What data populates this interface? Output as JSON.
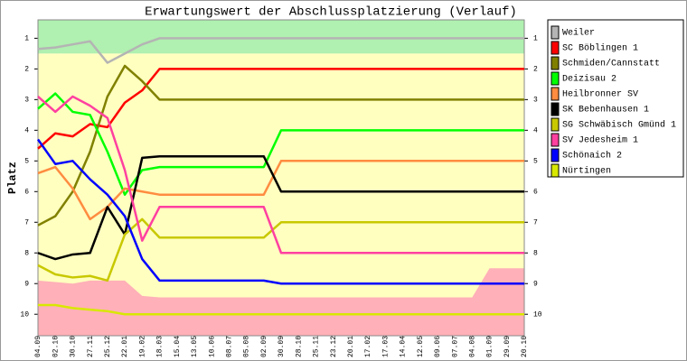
{
  "chart_data": {
    "type": "line",
    "title": "Erwartungswert der Abschlussplatzierung (Verlauf)",
    "y_label": "Platz",
    "categories": [
      "04.09",
      "02.10",
      "30.10",
      "27.11",
      "25.12",
      "22.01",
      "19.02",
      "18.03",
      "15.04",
      "13.05",
      "10.06",
      "08.07",
      "05.08",
      "02.09",
      "30.09",
      "28.10",
      "25.11",
      "23.12",
      "20.01",
      "17.02",
      "17.03",
      "14.04",
      "12.05",
      "09.06",
      "07.07",
      "04.08",
      "01.09",
      "29.09",
      "20.10"
    ],
    "ylim": [
      0.4,
      10.7
    ],
    "y_inverted": true,
    "yticks": [
      1,
      2,
      3,
      4,
      5,
      6,
      7,
      8,
      9,
      10
    ],
    "bands": [
      {
        "from": 0.4,
        "to": 1.5,
        "color": "#b0f0b0"
      },
      {
        "from": 1.5,
        "to": 10.7,
        "color": "#ffffc0"
      }
    ],
    "area": {
      "color": "#ffb0b8",
      "values": [
        8.9,
        8.95,
        9.0,
        8.9,
        8.9,
        8.9,
        9.4,
        9.45,
        9.45,
        9.45,
        9.45,
        9.45,
        9.45,
        9.45,
        9.45,
        9.45,
        9.45,
        9.45,
        9.45,
        9.45,
        9.45,
        9.45,
        9.45,
        9.45,
        9.45,
        9.45,
        8.5,
        8.5,
        8.5
      ]
    },
    "legend": "right",
    "series": [
      {
        "name": "Weiler",
        "color": "#b4b4b4",
        "values": [
          1.35,
          1.3,
          1.2,
          1.1,
          1.8,
          1.5,
          1.2,
          1.0,
          1.0,
          1.0,
          1.0,
          1.0,
          1.0,
          1.0,
          1.0,
          1.0,
          1.0,
          1.0,
          1.0,
          1.0,
          1.0,
          1.0,
          1.0,
          1.0,
          1.0,
          1.0,
          1.0,
          1.0,
          1.0
        ]
      },
      {
        "name": "SC Böblingen 1",
        "color": "#ff0000",
        "values": [
          4.6,
          4.1,
          4.2,
          3.8,
          3.9,
          3.1,
          2.7,
          2.0,
          2.0,
          2.0,
          2.0,
          2.0,
          2.0,
          2.0,
          2.0,
          2.0,
          2.0,
          2.0,
          2.0,
          2.0,
          2.0,
          2.0,
          2.0,
          2.0,
          2.0,
          2.0,
          2.0,
          2.0,
          2.0
        ]
      },
      {
        "name": "Schmiden/Cannstatt",
        "color": "#808000",
        "values": [
          7.1,
          6.8,
          6.0,
          4.7,
          2.9,
          1.9,
          2.4,
          3.0,
          3.0,
          3.0,
          3.0,
          3.0,
          3.0,
          3.0,
          3.0,
          3.0,
          3.0,
          3.0,
          3.0,
          3.0,
          3.0,
          3.0,
          3.0,
          3.0,
          3.0,
          3.0,
          3.0,
          3.0,
          3.0
        ]
      },
      {
        "name": "Deizisau 2",
        "color": "#00ff00",
        "values": [
          3.3,
          2.8,
          3.4,
          3.5,
          4.7,
          6.1,
          5.3,
          5.2,
          5.2,
          5.2,
          5.2,
          5.2,
          5.2,
          5.2,
          4.0,
          4.0,
          4.0,
          4.0,
          4.0,
          4.0,
          4.0,
          4.0,
          4.0,
          4.0,
          4.0,
          4.0,
          4.0,
          4.0,
          4.0
        ]
      },
      {
        "name": "Heilbronner SV",
        "color": "#ff8c40",
        "values": [
          5.4,
          5.2,
          5.9,
          6.9,
          6.5,
          5.9,
          6.0,
          6.1,
          6.1,
          6.1,
          6.1,
          6.1,
          6.1,
          6.1,
          5.0,
          5.0,
          5.0,
          5.0,
          5.0,
          5.0,
          5.0,
          5.0,
          5.0,
          5.0,
          5.0,
          5.0,
          5.0,
          5.0,
          5.0
        ]
      },
      {
        "name": "SK Bebenhausen 1",
        "color": "#000000",
        "values": [
          8.0,
          8.2,
          8.05,
          8.0,
          6.5,
          7.4,
          4.9,
          4.85,
          4.85,
          4.85,
          4.85,
          4.85,
          4.85,
          4.85,
          6.0,
          6.0,
          6.0,
          6.0,
          6.0,
          6.0,
          6.0,
          6.0,
          6.0,
          6.0,
          6.0,
          6.0,
          6.0,
          6.0,
          6.0
        ]
      },
      {
        "name": "SG Schwäbisch Gmünd 1",
        "color": "#c8c800",
        "values": [
          8.4,
          8.7,
          8.8,
          8.75,
          8.9,
          7.4,
          6.9,
          7.5,
          7.5,
          7.5,
          7.5,
          7.5,
          7.5,
          7.5,
          7.0,
          7.0,
          7.0,
          7.0,
          7.0,
          7.0,
          7.0,
          7.0,
          7.0,
          7.0,
          7.0,
          7.0,
          7.0,
          7.0,
          7.0
        ]
      },
      {
        "name": "SV Jedesheim 1",
        "color": "#ff40a0",
        "values": [
          2.9,
          3.4,
          2.9,
          3.2,
          3.6,
          5.3,
          7.6,
          6.5,
          6.5,
          6.5,
          6.5,
          6.5,
          6.5,
          6.5,
          8.0,
          8.0,
          8.0,
          8.0,
          8.0,
          8.0,
          8.0,
          8.0,
          8.0,
          8.0,
          8.0,
          8.0,
          8.0,
          8.0,
          8.0
        ]
      },
      {
        "name": "Schönaich 2",
        "color": "#0000ff",
        "values": [
          4.3,
          5.1,
          5.0,
          5.6,
          6.1,
          6.8,
          8.2,
          8.9,
          8.9,
          8.9,
          8.9,
          8.9,
          8.9,
          8.9,
          9.0,
          9.0,
          9.0,
          9.0,
          9.0,
          9.0,
          9.0,
          9.0,
          9.0,
          9.0,
          9.0,
          9.0,
          9.0,
          9.0,
          9.0
        ]
      },
      {
        "name": "Nürtingen",
        "color": "#d8e800",
        "values": [
          9.7,
          9.7,
          9.8,
          9.85,
          9.9,
          10.0,
          10.0,
          10.0,
          10.0,
          10.0,
          10.0,
          10.0,
          10.0,
          10.0,
          10.0,
          10.0,
          10.0,
          10.0,
          10.0,
          10.0,
          10.0,
          10.0,
          10.0,
          10.0,
          10.0,
          10.0,
          10.0,
          10.0,
          10.0
        ]
      }
    ]
  }
}
